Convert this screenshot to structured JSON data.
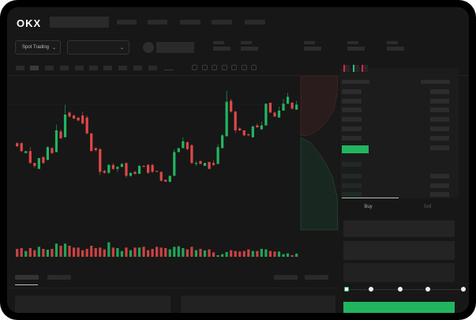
{
  "header": {
    "logo": "OKX",
    "nav_items": 5
  },
  "toolbar": {
    "market_type": "Spot Trading",
    "pair_select": ""
  },
  "orderbook": {
    "view_icons": [
      "orderbook-both-icon",
      "orderbook-buy-icon",
      "orderbook-sell-icon"
    ]
  },
  "trade": {
    "tabs": [
      "Buy",
      "Sell"
    ],
    "slider_steps": [
      0,
      25,
      50,
      75,
      100
    ],
    "slider_value": 0,
    "submit_label": ""
  },
  "colors": {
    "up": "#22b55f",
    "down": "#e04848",
    "background": "#171717",
    "panel": "#1c1c1c"
  },
  "chart_data": {
    "type": "candlestick",
    "title": "",
    "candles": [
      [
        43,
        40,
        44,
        39
      ],
      [
        43,
        35,
        44,
        34
      ],
      [
        33,
        35,
        35,
        33
      ],
      [
        35,
        23,
        39,
        22
      ],
      [
        23,
        20,
        23,
        18
      ],
      [
        17,
        28,
        28,
        17
      ],
      [
        29,
        23,
        30,
        22
      ],
      [
        26,
        39,
        40,
        26
      ],
      [
        38,
        33,
        39,
        32
      ],
      [
        34,
        56,
        62,
        34
      ],
      [
        55,
        48,
        57,
        47
      ],
      [
        49,
        72,
        82,
        49
      ],
      [
        74,
        70,
        75,
        69
      ],
      [
        71,
        68,
        72,
        67
      ],
      [
        69,
        66,
        69,
        66
      ],
      [
        71,
        63,
        75,
        62
      ],
      [
        69,
        53,
        71,
        52
      ],
      [
        53,
        35,
        53,
        35
      ],
      [
        38,
        36,
        39,
        34
      ],
      [
        37,
        14,
        38,
        11
      ],
      [
        15,
        13,
        16,
        12
      ],
      [
        13,
        21,
        22,
        12
      ],
      [
        21,
        17,
        23,
        16
      ],
      [
        17,
        19,
        20,
        14
      ],
      [
        19,
        22,
        23,
        19
      ],
      [
        23,
        10,
        23,
        8
      ],
      [
        10,
        13,
        13,
        9
      ],
      [
        14,
        12,
        15,
        11
      ],
      [
        12,
        20,
        21,
        12
      ],
      [
        20,
        19,
        21,
        19
      ],
      [
        21,
        13,
        22,
        12
      ],
      [
        21,
        14,
        22,
        13
      ],
      [
        15,
        14,
        15,
        14
      ],
      [
        14,
        5,
        14,
        4
      ],
      [
        6,
        4,
        6,
        4
      ],
      [
        4,
        10,
        10,
        3
      ],
      [
        10,
        34,
        37,
        10
      ],
      [
        34,
        38,
        38,
        34
      ],
      [
        38,
        45,
        49,
        38
      ],
      [
        44,
        37,
        45,
        36
      ],
      [
        41,
        23,
        42,
        22
      ],
      [
        22,
        23,
        25,
        20
      ],
      [
        25,
        22,
        25,
        22
      ],
      [
        20,
        23,
        23,
        20
      ],
      [
        24,
        17,
        24,
        17
      ],
      [
        23,
        21,
        26,
        20
      ],
      [
        22,
        39,
        42,
        22
      ],
      [
        38,
        51,
        52,
        38
      ],
      [
        50,
        85,
        96,
        50
      ],
      [
        86,
        75,
        88,
        74
      ],
      [
        75,
        56,
        76,
        53
      ],
      [
        58,
        56,
        59,
        55
      ],
      [
        56,
        51,
        56,
        50
      ],
      [
        52,
        51,
        53,
        50
      ],
      [
        49,
        60,
        61,
        49
      ],
      [
        61,
        59,
        63,
        59
      ],
      [
        57,
        61,
        65,
        57
      ],
      [
        61,
        83,
        83,
        61
      ],
      [
        84,
        74,
        84,
        74
      ],
      [
        74,
        70,
        75,
        70
      ],
      [
        69,
        76,
        80,
        69
      ],
      [
        76,
        83,
        88,
        76
      ],
      [
        83,
        90,
        94,
        83
      ],
      [
        84,
        78,
        85,
        77
      ],
      [
        77,
        82,
        86,
        77
      ]
    ],
    "volume": [
      30,
      33,
      22,
      33,
      25,
      38,
      30,
      27,
      30,
      50,
      42,
      50,
      42,
      35,
      35,
      25,
      30,
      42,
      33,
      35,
      28,
      55,
      35,
      33,
      22,
      35,
      25,
      35,
      35,
      38,
      25,
      30,
      38,
      35,
      33,
      28,
      38,
      40,
      33,
      28,
      38,
      25,
      30,
      24,
      28,
      17,
      6,
      10,
      18,
      25,
      22,
      20,
      22,
      28,
      22,
      22,
      30,
      28,
      22,
      20,
      20,
      10,
      13,
      6,
      12
    ]
  }
}
